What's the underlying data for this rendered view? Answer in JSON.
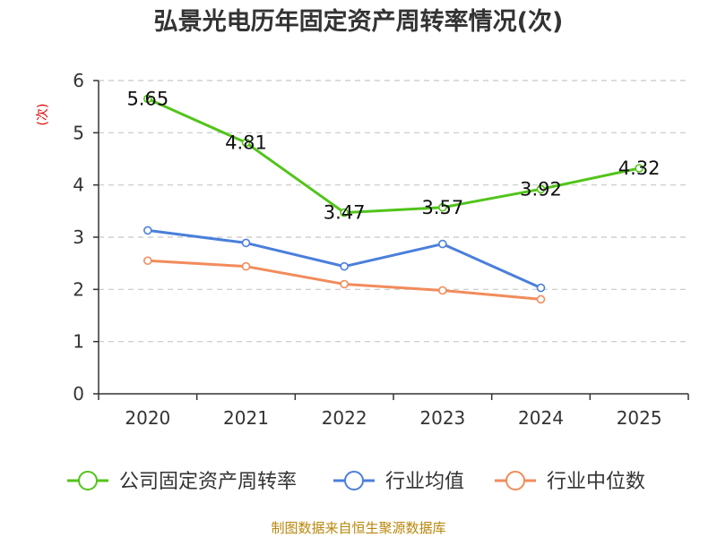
{
  "chart_data": {
    "type": "line",
    "title": "弘景光电历年固定资产周转率情况(次)",
    "ylabel": "(次)",
    "xlabel": "",
    "categories": [
      "2020",
      "2021",
      "2022",
      "2023",
      "2024",
      "2025"
    ],
    "ylim": [
      0,
      6
    ],
    "yticks": [
      "0",
      "1",
      "2",
      "3",
      "4",
      "5",
      "6"
    ],
    "grid": true,
    "legend_position": "bottom",
    "series": [
      {
        "name": "公司固定资产周转率",
        "color": "#52c41a",
        "values": [
          5.65,
          4.81,
          3.47,
          3.57,
          3.92,
          4.32
        ],
        "labels": [
          "5.65",
          "4.81",
          "3.47",
          "3.57",
          "3.92",
          "4.32"
        ]
      },
      {
        "name": "行业均值",
        "color": "#4a7fdb",
        "values": [
          3.13,
          2.89,
          2.44,
          2.87,
          2.03,
          null
        ]
      },
      {
        "name": "行业中位数",
        "color": "#f28b5b",
        "values": [
          2.55,
          2.44,
          2.1,
          1.98,
          1.81,
          null
        ]
      }
    ],
    "source": "制图数据来自恒生聚源数据库"
  }
}
